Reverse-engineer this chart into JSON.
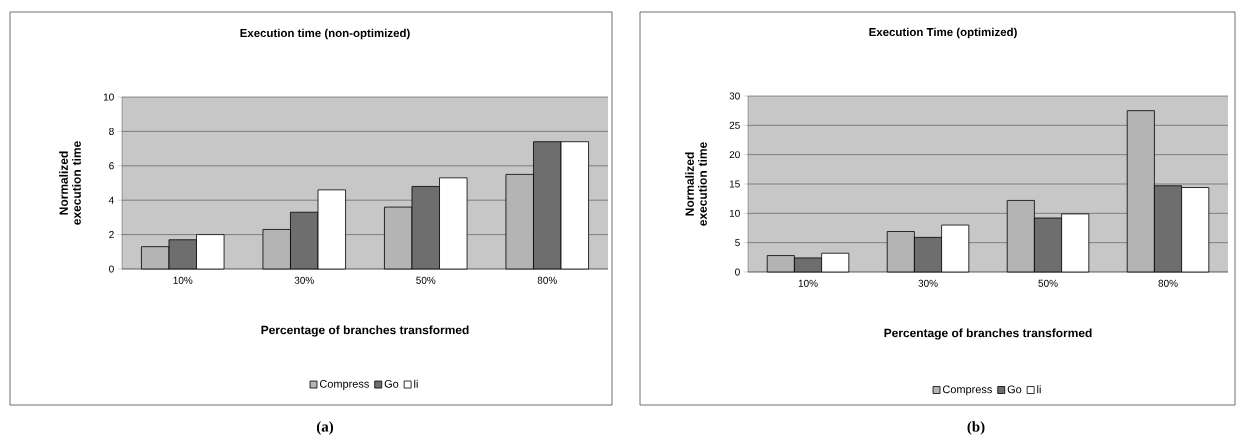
{
  "chart_data": [
    {
      "type": "bar",
      "title": "Execution time (non-optimized)",
      "xlabel": "Percentage of branches transformed",
      "ylabel": "Normalized execution time",
      "categories": [
        "10%",
        "30%",
        "50%",
        "80%"
      ],
      "series": [
        {
          "name": "Compress",
          "color": "#b4b4b4",
          "values": [
            1.3,
            2.3,
            3.6,
            5.5
          ]
        },
        {
          "name": "Go",
          "color": "#6e6e6e",
          "values": [
            1.7,
            3.3,
            4.8,
            7.4
          ]
        },
        {
          "name": "li",
          "color": "#ffffff",
          "values": [
            2.0,
            4.6,
            5.3,
            7.4
          ]
        }
      ],
      "ylim": [
        0,
        10
      ],
      "yticks": [
        0,
        2,
        4,
        6,
        8,
        10
      ],
      "grid": "y",
      "legend": "bottom",
      "annotations": [
        "(a)"
      ]
    },
    {
      "type": "bar",
      "title": "Execution Time (optimized)",
      "xlabel": "Percentage of branches transformed",
      "ylabel": "Normalized execution time",
      "categories": [
        "10%",
        "30%",
        "50%",
        "80%"
      ],
      "series": [
        {
          "name": "Compress",
          "color": "#b4b4b4",
          "values": [
            2.8,
            6.9,
            12.2,
            27.5
          ]
        },
        {
          "name": "Go",
          "color": "#6e6e6e",
          "values": [
            2.4,
            5.9,
            9.2,
            14.7
          ]
        },
        {
          "name": "li",
          "color": "#ffffff",
          "values": [
            3.2,
            8.0,
            9.9,
            14.4
          ]
        }
      ],
      "ylim": [
        0,
        30
      ],
      "yticks": [
        0,
        5,
        10,
        15,
        20,
        25,
        30
      ],
      "grid": "y",
      "legend": "bottom",
      "annotations": [
        "(b)"
      ]
    }
  ]
}
